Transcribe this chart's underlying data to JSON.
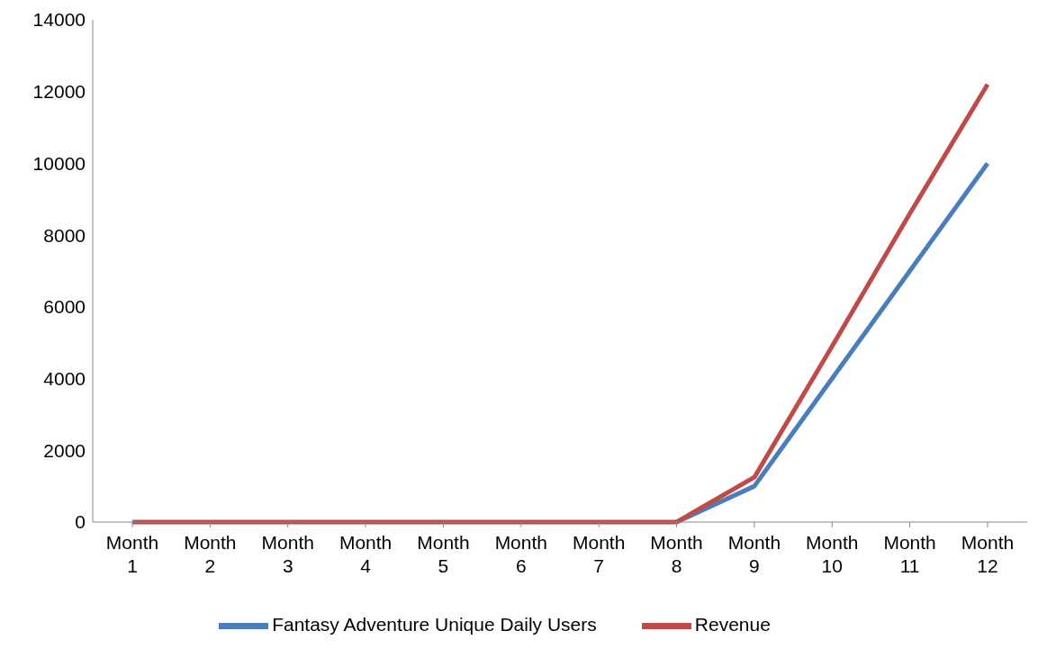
{
  "chart_data": {
    "type": "line",
    "categories": [
      "Month 1",
      "Month 2",
      "Month 3",
      "Month 4",
      "Month 5",
      "Month 6",
      "Month 7",
      "Month 8",
      "Month 9",
      "Month 10",
      "Month 11",
      "Month 12"
    ],
    "series": [
      {
        "name": "Fantasy Adventure Unique Daily Users",
        "color": "#4a7ebb",
        "values": [
          null,
          null,
          null,
          null,
          null,
          null,
          null,
          0,
          1000,
          4000,
          7000,
          10000
        ]
      },
      {
        "name": "Revenue",
        "color": "#be4b48",
        "values": [
          0,
          0,
          0,
          0,
          0,
          0,
          0,
          0,
          1250,
          4900,
          8600,
          12200
        ]
      }
    ],
    "ylim": [
      0,
      14000
    ],
    "yticks": [
      0,
      2000,
      4000,
      6000,
      8000,
      10000,
      12000,
      14000
    ],
    "grid": false,
    "legend": "bottom",
    "marker": "none"
  }
}
